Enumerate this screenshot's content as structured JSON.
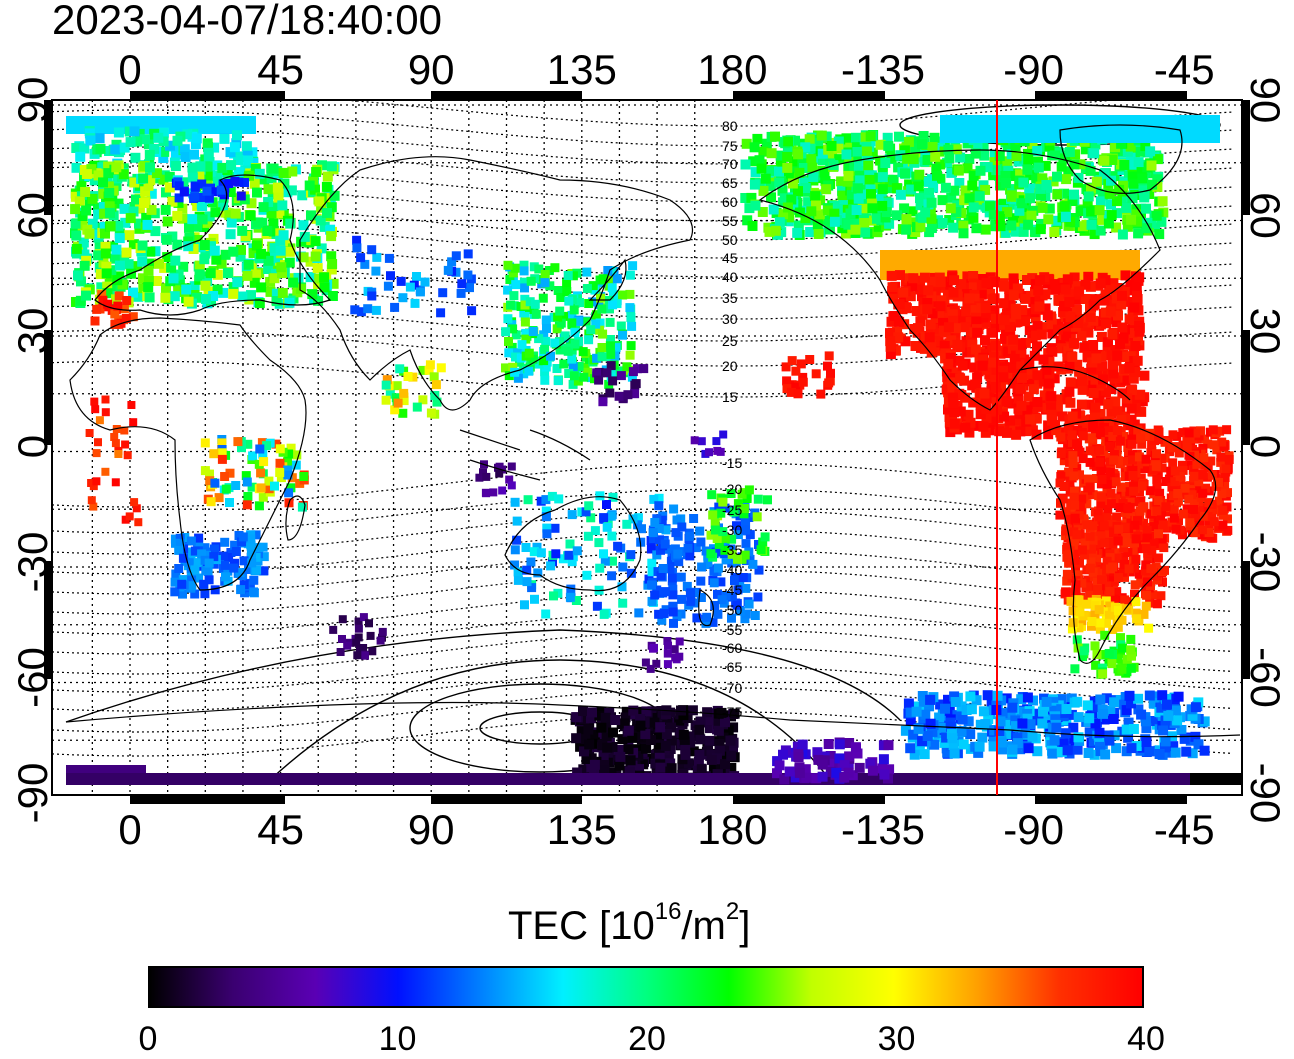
{
  "timestamp": "2023-04-07/18:40:00",
  "axes": {
    "top_ticks": [
      "0",
      "45",
      "90",
      "135",
      "180",
      "-135",
      "-90",
      "-45"
    ],
    "bottom_ticks": [
      "0",
      "45",
      "90",
      "135",
      "180",
      "-135",
      "-90",
      "-45"
    ],
    "left_ticks": [
      "90",
      "60",
      "30",
      "0",
      "-30",
      "-60",
      "-90"
    ],
    "right_ticks": [
      "90",
      "60",
      "30",
      "0",
      "-30",
      "-60",
      "-90"
    ]
  },
  "magnetic_latitude_labels": [
    "80",
    "75",
    "70",
    "65",
    "60",
    "55",
    "50",
    "45",
    "40",
    "35",
    "30",
    "25",
    "20",
    "15",
    "-15",
    "-20",
    "-25",
    "-30",
    "-35",
    "-40",
    "-45",
    "-50",
    "-55",
    "-60",
    "-65",
    "-70",
    "-75"
  ],
  "colorbar": {
    "title_main": "TEC  [10",
    "title_sup1": "16",
    "title_mid": "/m",
    "title_sup2": "2",
    "title_end": "]",
    "ticks": [
      "0",
      "10",
      "20",
      "30",
      "40"
    ],
    "range": [
      0,
      40
    ],
    "colors": [
      "#000000",
      "#3a0070",
      "#5a00b4",
      "#0010ff",
      "#0080ff",
      "#00f0ff",
      "#00ff80",
      "#00ff00",
      "#c0ff00",
      "#ffff00",
      "#ffa000",
      "#ff3000",
      "#ff0000"
    ]
  },
  "terminator_color": "#ff0000",
  "terminator_longitude": -100,
  "tec_regions": [
    {
      "name": "north-america",
      "tec": 38
    },
    {
      "name": "south-america",
      "tec": 38
    },
    {
      "name": "canada-arctic",
      "tec": 24
    },
    {
      "name": "europe",
      "tec": 20
    },
    {
      "name": "east-asia",
      "tec": 21
    },
    {
      "name": "antarctica",
      "tec": 2
    }
  ]
}
